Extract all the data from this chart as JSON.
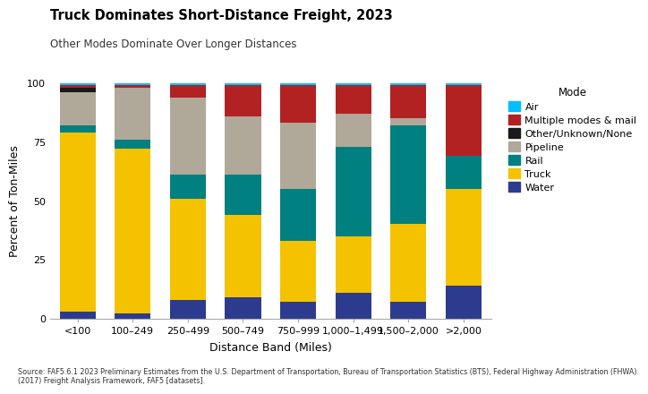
{
  "categories": [
    "<100",
    "100–249",
    "250–499",
    "500–749",
    "750–999",
    "1,000–1,499",
    "1,500–2,000",
    ">2,000"
  ],
  "modes": [
    "Water",
    "Truck",
    "Rail",
    "Pipeline",
    "Other/Unknown/None",
    "Multiple modes & mail",
    "Air"
  ],
  "colors": {
    "Water": "#2d3b8e",
    "Truck": "#f5c200",
    "Rail": "#008080",
    "Pipeline": "#b0a898",
    "Other/Unknown/None": "#1a1a1a",
    "Multiple modes & mail": "#b22222",
    "Air": "#00bfff"
  },
  "data": {
    "Water": [
      3,
      2,
      8,
      9,
      7,
      11,
      7,
      14
    ],
    "Truck": [
      76,
      70,
      43,
      35,
      26,
      24,
      33,
      41
    ],
    "Rail": [
      3,
      4,
      10,
      17,
      22,
      38,
      42,
      14
    ],
    "Pipeline": [
      14,
      22,
      33,
      25,
      28,
      14,
      3,
      0
    ],
    "Other/Unknown/None": [
      2,
      0,
      0,
      0,
      0,
      0,
      0,
      0
    ],
    "Multiple modes & mail": [
      1,
      1,
      5,
      13,
      16,
      12,
      14,
      30
    ],
    "Air": [
      1,
      1,
      1,
      1,
      1,
      1,
      1,
      1
    ]
  },
  "title": "Truck Dominates Short-Distance Freight, 2023",
  "subtitle": "Other Modes Dominate Over Longer Distances",
  "xlabel": "Distance Band (Miles)",
  "ylabel": "Percent of Ton-Miles",
  "source": "Source: FAF5.6.1 2023 Preliminary Estimates from the U.S. Department of Transportation, Bureau of Transportation Statistics (BTS), Federal Highway Administration (FHWA).\n(2017) Freight Analysis Framework, FAF5 [datasets].",
  "ylim": [
    0,
    100
  ],
  "yticks": [
    0,
    25,
    50,
    75,
    100
  ],
  "background_color": "#ffffff",
  "fig_width": 7.25,
  "fig_height": 4.38,
  "dpi": 100
}
